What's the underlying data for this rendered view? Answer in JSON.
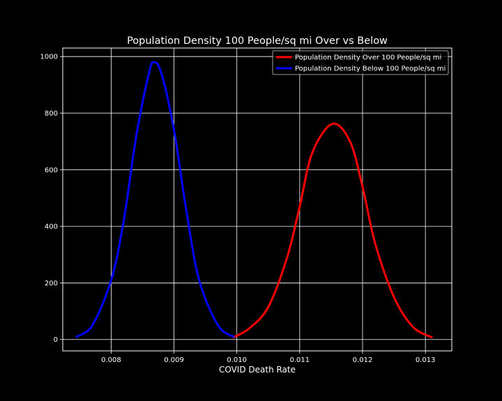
{
  "chart_data": {
    "type": "line",
    "title": "Population Density 100 People/sq mi Over vs Below",
    "xlabel": "COVID Death Rate",
    "ylabel": "",
    "xlim": [
      0.00723,
      0.01342
    ],
    "ylim": [
      -40,
      1030
    ],
    "x_ticks": [
      0.008,
      0.009,
      0.01,
      0.011,
      0.012,
      0.013
    ],
    "x_tick_labels": [
      "0.008",
      "0.009",
      "0.010",
      "0.011",
      "0.012",
      "0.013"
    ],
    "y_ticks": [
      0,
      200,
      400,
      600,
      800,
      1000
    ],
    "y_tick_labels": [
      "0",
      "200",
      "400",
      "600",
      "800",
      "1000"
    ],
    "grid": true,
    "legend_position": "top-right",
    "background": "#000000",
    "series": [
      {
        "name": "Population Density Over 100 People/sq mi",
        "color": "#ff0000",
        "x": [
          0.00995,
          0.0102,
          0.0105,
          0.0108,
          0.011,
          0.0112,
          0.01152,
          0.0118,
          0.012,
          0.0122,
          0.0125,
          0.0128,
          0.0131
        ],
        "y": [
          8,
          40,
          115,
          290,
          470,
          660,
          762,
          700,
          540,
          340,
          150,
          45,
          8
        ]
      },
      {
        "name": "Population Density Below 100 People/sq mi",
        "color": "#0000ff",
        "x": [
          0.00745,
          0.0077,
          0.008,
          0.0082,
          0.0084,
          0.0086,
          0.00868,
          0.0088,
          0.009,
          0.0092,
          0.0094,
          0.0097,
          0.00995
        ],
        "y": [
          10,
          50,
          210,
          420,
          720,
          940,
          980,
          940,
          740,
          450,
          210,
          50,
          10
        ]
      }
    ]
  }
}
